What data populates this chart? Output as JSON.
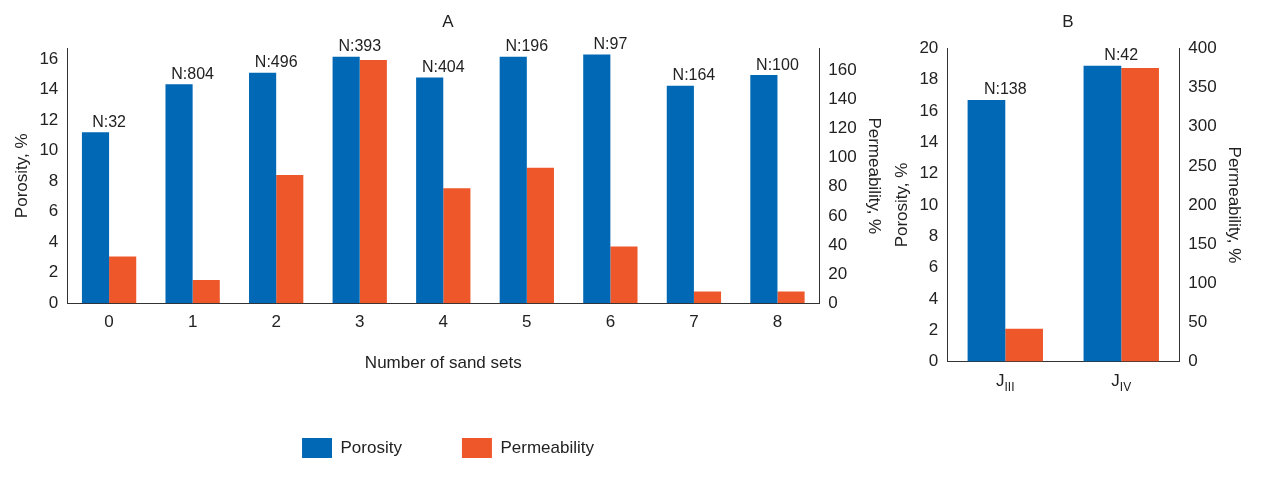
{
  "chart_data": [
    {
      "type": "bar",
      "title": "A",
      "xlabel": "Number of sand sets",
      "ylabel": "Porosity, %",
      "y2label": "Permeability, %",
      "categories": [
        "0",
        "1",
        "2",
        "3",
        "4",
        "5",
        "6",
        "7",
        "8"
      ],
      "series": [
        {
          "name": "Porosity",
          "color": "#0068b4",
          "values": [
            11.2,
            14.35,
            15.1,
            16.15,
            14.8,
            16.15,
            16.3,
            14.25,
            14.95
          ]
        },
        {
          "name": "Permeability",
          "color": "#ee572a",
          "axis": "y2",
          "values": [
            32,
            16,
            88,
            167,
            79,
            93,
            39,
            8,
            8
          ]
        }
      ],
      "ylim": [
        0,
        16.7
      ],
      "yticks": [
        0,
        2,
        4,
        6,
        8,
        10,
        12,
        14,
        16
      ],
      "y2lim": [
        0,
        175
      ],
      "y2ticks": [
        0,
        20,
        40,
        60,
        80,
        100,
        120,
        140,
        160
      ],
      "grid": false,
      "legend": "bottom",
      "annotations": [
        {
          "text": "N:32",
          "x": "0",
          "y": 11.2
        },
        {
          "text": "N:804",
          "x": "1",
          "y": 14.35
        },
        {
          "text": "N:496",
          "x": "2",
          "y": 15.1
        },
        {
          "text": "N:393",
          "x": "3",
          "y": 16.15
        },
        {
          "text": "N:404",
          "x": "4",
          "y": 14.8
        },
        {
          "text": "N:196",
          "x": "5",
          "y": 16.15
        },
        {
          "text": "N:97",
          "x": "6",
          "y": 16.3
        },
        {
          "text": "N:164",
          "x": "7",
          "y": 14.25
        },
        {
          "text": "N:100",
          "x": "8",
          "y": 14.95
        }
      ]
    },
    {
      "type": "bar",
      "title": "B",
      "ylabel": "Porosity, %",
      "y2label": "Permeability, %",
      "categories": [
        "J$_{III}$",
        "J$_{IV}$"
      ],
      "series": [
        {
          "color": "#0068b4",
          "values": [
            16.7,
            18.9
          ]
        },
        {
          "color": "#ee572a",
          "axis": "y2",
          "values": [
            42,
            375
          ]
        }
      ],
      "ylim": [
        0,
        20
      ],
      "yticks": [
        0,
        2,
        4,
        6,
        8,
        10,
        12,
        14,
        16,
        18,
        20
      ],
      "y2lim": [
        0,
        400
      ],
      "y2ticks": [
        0,
        50,
        100,
        150,
        200,
        250,
        300,
        350,
        400
      ],
      "grid": false,
      "annotations": [
        {
          "text": "N:138",
          "x": "J$_{III}$",
          "y": 16.7
        },
        {
          "text": "N:42",
          "x": "J$_{IV}$",
          "y": 18.9
        }
      ]
    }
  ]
}
